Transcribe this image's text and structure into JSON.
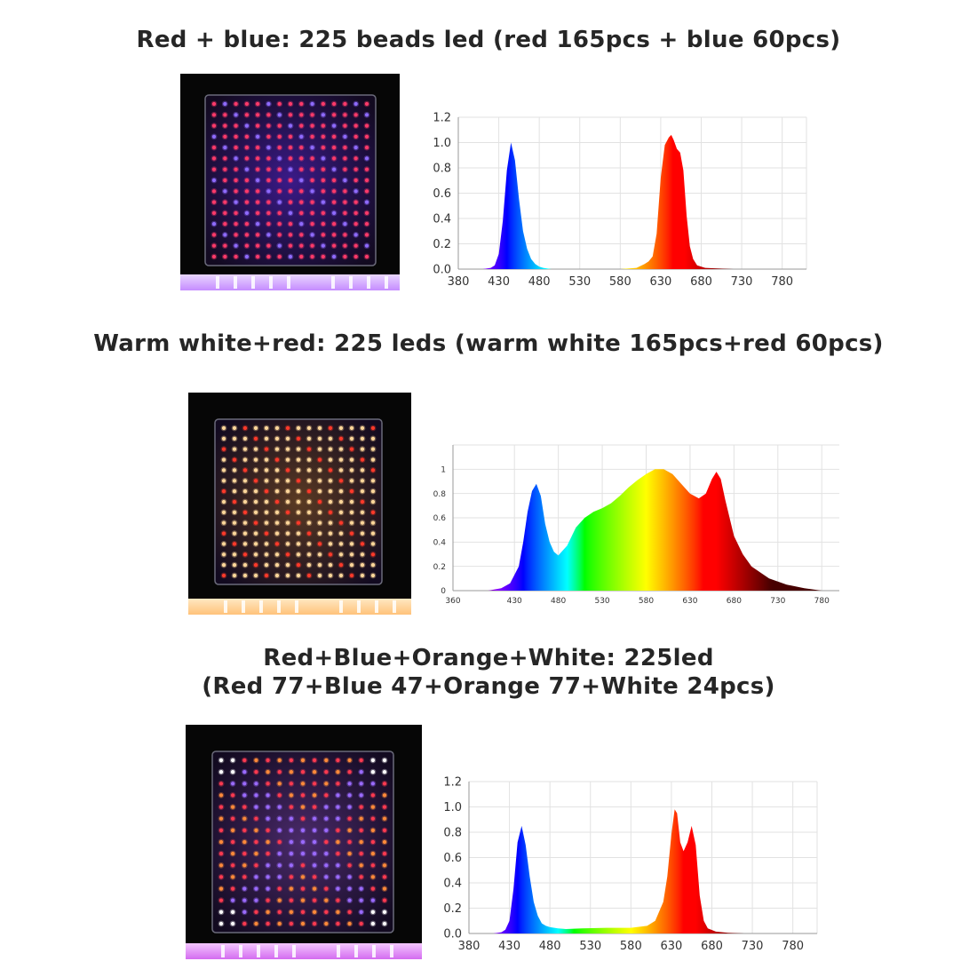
{
  "section_titles": {
    "red_blue": "Red + blue: 225 beads led (red 165pcs + blue 60pcs)",
    "warm_white_red": "Warm white+red: 225 leds (warm white 165pcs+red 60pcs)",
    "rbow_line1": "Red+Blue+Orange+White: 225led",
    "rbow_line2": "(Red 77+Blue 47+Orange 77+White 24pcs)"
  },
  "photos": [
    {
      "name": "red-blue-panel-photo",
      "colors": {
        "red": "#ff3a6a",
        "blue": "#8f6bff",
        "board": "#3a1a88"
      }
    },
    {
      "name": "warm-white-red-panel-photo",
      "colors": {
        "warm_white": "#ffd79a",
        "red": "#ff3a2a",
        "board": "#5a3a22"
      }
    },
    {
      "name": "rbow-panel-photo",
      "colors": {
        "red": "#ff3a50",
        "blue": "#9b6bff",
        "orange": "#ff8a3a",
        "white": "#ffffff",
        "board": "#4a2a6a"
      }
    }
  ],
  "chart_data": [
    {
      "type": "area",
      "title": "",
      "x_ticks": [
        380,
        430,
        480,
        530,
        580,
        630,
        680,
        730,
        780
      ],
      "y_ticks": [
        "0.0",
        "0.2",
        "0.4",
        "0.6",
        "0.8",
        "1.0",
        "1.2"
      ],
      "xlim": [
        380,
        810
      ],
      "ylim": [
        0,
        1.2
      ],
      "grid": true,
      "fill": "spectral",
      "x": [
        410,
        420,
        425,
        430,
        435,
        440,
        445,
        450,
        455,
        460,
        465,
        470,
        475,
        480,
        485,
        495,
        580,
        600,
        610,
        615,
        620,
        625,
        630,
        635,
        640,
        643,
        646,
        650,
        654,
        658,
        662,
        666,
        670,
        675,
        685,
        700,
        720
      ],
      "y": [
        0.0,
        0.01,
        0.03,
        0.12,
        0.38,
        0.78,
        1.0,
        0.86,
        0.55,
        0.3,
        0.16,
        0.08,
        0.04,
        0.02,
        0.01,
        0.0,
        0.0,
        0.01,
        0.04,
        0.06,
        0.1,
        0.28,
        0.72,
        0.98,
        1.04,
        1.06,
        1.02,
        0.95,
        0.92,
        0.78,
        0.42,
        0.18,
        0.08,
        0.03,
        0.01,
        0.005,
        0.0
      ]
    },
    {
      "type": "area",
      "title": "",
      "x_ticks": [
        360,
        430,
        480,
        530,
        580,
        630,
        680,
        730,
        780
      ],
      "y_ticks": [
        "0",
        "0.2",
        "0.4",
        "0.6",
        "0.8",
        "1"
      ],
      "xlim": [
        360,
        800
      ],
      "ylim": [
        0,
        1.2
      ],
      "grid": true,
      "fill": "spectral",
      "x": [
        400,
        415,
        425,
        435,
        440,
        445,
        450,
        455,
        460,
        465,
        470,
        475,
        480,
        490,
        500,
        510,
        520,
        530,
        540,
        550,
        560,
        570,
        580,
        590,
        600,
        610,
        620,
        630,
        640,
        648,
        655,
        660,
        665,
        670,
        680,
        690,
        700,
        720,
        740,
        760,
        780
      ],
      "y": [
        0.0,
        0.02,
        0.06,
        0.2,
        0.4,
        0.65,
        0.82,
        0.88,
        0.78,
        0.55,
        0.4,
        0.32,
        0.29,
        0.37,
        0.52,
        0.6,
        0.65,
        0.68,
        0.72,
        0.78,
        0.85,
        0.91,
        0.96,
        1.0,
        1.0,
        0.96,
        0.88,
        0.8,
        0.76,
        0.8,
        0.92,
        0.98,
        0.92,
        0.75,
        0.45,
        0.3,
        0.2,
        0.1,
        0.05,
        0.02,
        0.0
      ]
    },
    {
      "type": "area",
      "title": "",
      "x_ticks": [
        380,
        430,
        480,
        530,
        580,
        630,
        680,
        730,
        780
      ],
      "y_ticks": [
        "0.0",
        "0.2",
        "0.4",
        "0.6",
        "0.8",
        "1.0",
        "1.2"
      ],
      "xlim": [
        380,
        810
      ],
      "ylim": [
        0,
        1.2
      ],
      "grid": true,
      "fill": "spectral",
      "x": [
        410,
        420,
        425,
        430,
        435,
        440,
        445,
        450,
        455,
        460,
        465,
        470,
        475,
        480,
        490,
        500,
        520,
        550,
        580,
        600,
        610,
        620,
        625,
        630,
        634,
        637,
        641,
        645,
        650,
        655,
        660,
        665,
        670,
        675,
        685,
        700,
        720
      ],
      "y": [
        0.0,
        0.01,
        0.03,
        0.1,
        0.35,
        0.72,
        0.85,
        0.7,
        0.45,
        0.25,
        0.14,
        0.08,
        0.06,
        0.05,
        0.04,
        0.035,
        0.04,
        0.045,
        0.045,
        0.06,
        0.1,
        0.25,
        0.45,
        0.78,
        0.98,
        0.95,
        0.72,
        0.65,
        0.72,
        0.85,
        0.7,
        0.3,
        0.1,
        0.04,
        0.015,
        0.005,
        0.0
      ]
    }
  ]
}
